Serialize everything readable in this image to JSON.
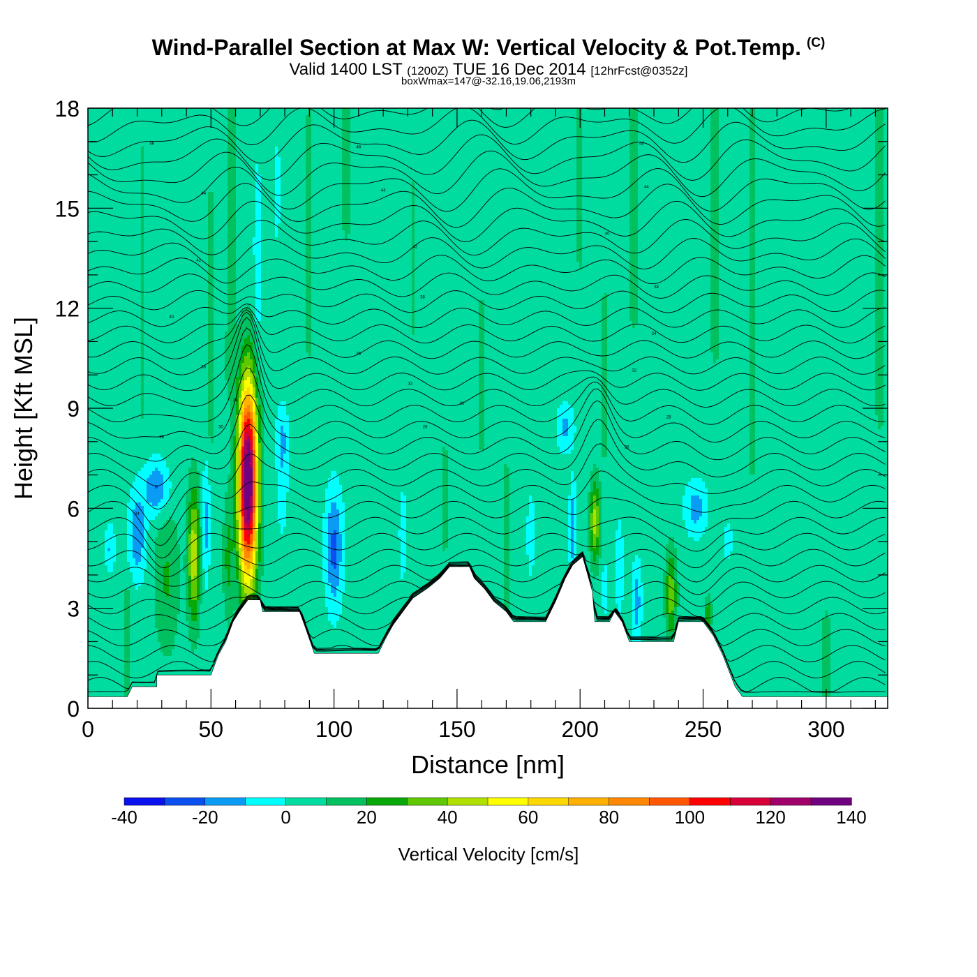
{
  "header": {
    "title": "Wind-Parallel Section at Max W: Vertical Velocity & Pot.Temp.",
    "copyright": "(C)",
    "valid_prefix": "Valid 1400 LST",
    "valid_zulu": "(1200Z)",
    "valid_date": "TUE 16 Dec 2014",
    "forecast": "[12hrFcst@0352z]",
    "box_info": "boxWmax=147@-32.16,19.06,2193m"
  },
  "chart_data": {
    "type": "heatmap",
    "title": "Wind-Parallel Section at Max W: Vertical Velocity & Pot.Temp.",
    "xlabel": "Distance [nm]",
    "ylabel": "Height [Kft MSL]",
    "xlim": [
      0,
      325
    ],
    "ylim": [
      0,
      18
    ],
    "xticks": [
      0,
      50,
      100,
      150,
      200,
      250,
      300
    ],
    "yticks": [
      0,
      3,
      6,
      9,
      12,
      15,
      18
    ],
    "colorbar": {
      "title": "Vertical Velocity [cm/s]",
      "ticks": [
        -40,
        -20,
        0,
        20,
        40,
        60,
        80,
        100,
        120,
        140
      ],
      "levels": [
        -40,
        -30,
        -20,
        -10,
        0,
        10,
        20,
        30,
        40,
        50,
        60,
        70,
        80,
        90,
        100,
        110,
        120,
        130,
        140
      ],
      "colors": [
        "#0a10f0",
        "#0a4ff0",
        "#0a9cf5",
        "#00ffff",
        "#00dca0",
        "#00c060",
        "#08a808",
        "#60c800",
        "#b0e000",
        "#ffff00",
        "#ffd800",
        "#ffb000",
        "#ff8800",
        "#ff5800",
        "#ff0000",
        "#d80038",
        "#a0006a",
        "#700080"
      ]
    },
    "background_value": 5,
    "terrain_kft": [
      [
        0,
        0.35
      ],
      [
        16,
        0.35
      ],
      [
        18,
        0.65
      ],
      [
        28,
        0.65
      ],
      [
        28,
        1.0
      ],
      [
        50,
        1.0
      ],
      [
        53,
        1.6
      ],
      [
        56,
        2.0
      ],
      [
        59,
        2.6
      ],
      [
        62,
        2.95
      ],
      [
        65,
        3.25
      ],
      [
        70,
        3.25
      ],
      [
        71,
        2.9
      ],
      [
        86,
        2.9
      ],
      [
        88,
        2.5
      ],
      [
        92,
        1.65
      ],
      [
        118,
        1.65
      ],
      [
        121,
        2.1
      ],
      [
        124,
        2.5
      ],
      [
        128,
        2.9
      ],
      [
        132,
        3.3
      ],
      [
        138,
        3.6
      ],
      [
        143,
        3.9
      ],
      [
        147,
        4.25
      ],
      [
        155,
        4.25
      ],
      [
        157,
        3.9
      ],
      [
        161,
        3.6
      ],
      [
        165,
        3.2
      ],
      [
        170,
        2.9
      ],
      [
        173,
        2.6
      ],
      [
        186,
        2.6
      ],
      [
        190,
        3.2
      ],
      [
        194,
        3.9
      ],
      [
        197,
        4.3
      ],
      [
        201,
        4.55
      ],
      [
        205,
        3.5
      ],
      [
        206,
        2.6
      ],
      [
        212,
        2.6
      ],
      [
        214,
        2.9
      ],
      [
        217,
        2.6
      ],
      [
        220,
        2.0
      ],
      [
        238,
        2.0
      ],
      [
        240,
        2.6
      ],
      [
        250,
        2.6
      ],
      [
        254,
        2.2
      ],
      [
        258,
        1.6
      ],
      [
        263,
        0.65
      ],
      [
        266,
        0.35
      ],
      [
        325,
        0.35
      ]
    ],
    "vertical_velocity_features": [
      {
        "x": 65,
        "y": 6.8,
        "sx": 3.8,
        "sy": 2.9,
        "w": 145
      },
      {
        "x": 43,
        "y": 4.6,
        "sx": 2.4,
        "sy": 2.0,
        "w": 42
      },
      {
        "x": 206,
        "y": 5.6,
        "sx": 2.0,
        "sy": 1.2,
        "w": 38
      },
      {
        "x": 237,
        "y": 3.4,
        "sx": 2.2,
        "sy": 1.3,
        "w": 32
      },
      {
        "x": 252,
        "y": 2.8,
        "sx": 1.4,
        "sy": 0.5,
        "w": 26
      },
      {
        "x": 32,
        "y": 3.9,
        "sx": 5.0,
        "sy": 2.2,
        "w": 16
      },
      {
        "x": 57,
        "y": 4.5,
        "sx": 2.0,
        "sy": 1.8,
        "w": 18
      },
      {
        "x": 28,
        "y": 6.6,
        "sx": 5.0,
        "sy": 0.8,
        "w": -27
      },
      {
        "x": 20,
        "y": 5.2,
        "sx": 3.5,
        "sy": 1.3,
        "w": -24
      },
      {
        "x": 9,
        "y": 4.8,
        "sx": 2.0,
        "sy": 0.7,
        "w": -16
      },
      {
        "x": 48,
        "y": 5.5,
        "sx": 1.5,
        "sy": 1.8,
        "w": -18
      },
      {
        "x": 79,
        "y": 8.0,
        "sx": 2.5,
        "sy": 1.1,
        "w": -18
      },
      {
        "x": 79,
        "y": 6.2,
        "sx": 2.0,
        "sy": 1.0,
        "w": -12
      },
      {
        "x": 69,
        "y": 13.5,
        "sx": 1.6,
        "sy": 3.0,
        "w": -13
      },
      {
        "x": 77,
        "y": 15.5,
        "sx": 1.0,
        "sy": 1.6,
        "w": -12
      },
      {
        "x": 100,
        "y": 4.8,
        "sx": 3.5,
        "sy": 1.8,
        "w": -28
      },
      {
        "x": 128,
        "y": 5.2,
        "sx": 1.5,
        "sy": 1.3,
        "w": -14
      },
      {
        "x": 194,
        "y": 8.4,
        "sx": 3.5,
        "sy": 0.7,
        "w": -18
      },
      {
        "x": 197,
        "y": 5.4,
        "sx": 1.3,
        "sy": 1.3,
        "w": -25
      },
      {
        "x": 180,
        "y": 5.2,
        "sx": 1.5,
        "sy": 1.2,
        "w": -14
      },
      {
        "x": 216,
        "y": 4.2,
        "sx": 1.5,
        "sy": 1.4,
        "w": -15
      },
      {
        "x": 223,
        "y": 3.2,
        "sx": 2.0,
        "sy": 1.2,
        "w": -20
      },
      {
        "x": 247,
        "y": 6.0,
        "sx": 4.5,
        "sy": 0.8,
        "w": -20
      },
      {
        "x": 260,
        "y": 5.0,
        "sx": 2.0,
        "sy": 0.6,
        "w": -11
      },
      {
        "x": 210,
        "y": 3.6,
        "sx": 1.2,
        "sy": 1.0,
        "w": -10
      }
    ],
    "positive_streaks": [
      {
        "x": 16,
        "y0": 0.4,
        "y1": 3.2,
        "w": 8
      },
      {
        "x": 58,
        "y0": 10.0,
        "y1": 18.0,
        "w": 10
      },
      {
        "x": 50,
        "y0": 8.5,
        "y1": 15.0,
        "w": 8
      },
      {
        "x": 22,
        "y0": 9.0,
        "y1": 16.5,
        "w": 6
      },
      {
        "x": 90,
        "y0": 11.0,
        "y1": 17.5,
        "w": 7
      },
      {
        "x": 105,
        "y0": 14.5,
        "y1": 18.0,
        "w": 7
      },
      {
        "x": 132,
        "y0": 11.5,
        "y1": 15.5,
        "w": 6
      },
      {
        "x": 160,
        "y0": 8.0,
        "y1": 12.0,
        "w": 6
      },
      {
        "x": 200,
        "y0": 13.5,
        "y1": 18.0,
        "w": 6
      },
      {
        "x": 210,
        "y0": 8.0,
        "y1": 12.0,
        "w": 7
      },
      {
        "x": 222,
        "y0": 12.0,
        "y1": 18.0,
        "w": 9
      },
      {
        "x": 255,
        "y0": 11.0,
        "y1": 18.0,
        "w": 9
      },
      {
        "x": 270,
        "y0": 7.5,
        "y1": 18.0,
        "w": 8
      },
      {
        "x": 322,
        "y0": 9.0,
        "y1": 18.0,
        "w": 9
      },
      {
        "x": 300,
        "y0": 0.5,
        "y1": 2.5,
        "w": 7
      },
      {
        "x": 145,
        "y0": 5.0,
        "y1": 7.5,
        "w": 6
      },
      {
        "x": 170,
        "y0": 3.0,
        "y1": 7.0,
        "w": 6
      }
    ],
    "theta_contours": {
      "count": 42,
      "base_kft": 0.2,
      "spacing_kft": 0.48,
      "label_min": 302,
      "label_step": 2
    },
    "contour_labels": [
      "46",
      "46",
      "46",
      "44",
      "44",
      "44",
      "42",
      "42",
      "40",
      "40",
      "38",
      "38",
      "36",
      "36",
      "34",
      "34",
      "32",
      "32",
      "30",
      "30",
      "28",
      "28",
      "26",
      "26",
      "24"
    ]
  }
}
